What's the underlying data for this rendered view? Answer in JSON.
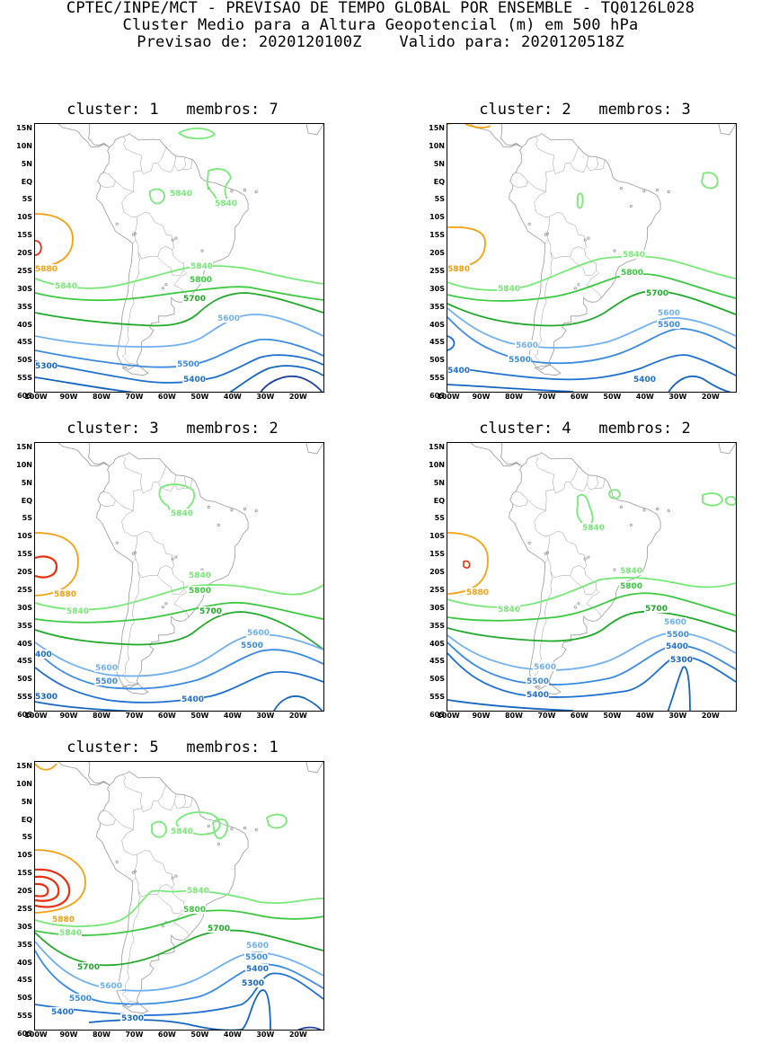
{
  "header": {
    "line1": "CPTEC/INPE/MCT - PREVISAO DE TEMPO GLOBAL POR ENSEMBLE - TQ0126L028",
    "line2": "Cluster Medio para a Altura Geopotencial (m) em 500 hPa",
    "line3": "Previsao de: 2020120100Z    Valido para: 2020120518Z"
  },
  "lat_labels": [
    "15N",
    "10N",
    "5N",
    "EQ",
    "5S",
    "10S",
    "15S",
    "20S",
    "25S",
    "30S",
    "35S",
    "40S",
    "45S",
    "50S",
    "55S",
    "60S"
  ],
  "lon_labels": [
    "100W",
    "90W",
    "80W",
    "70W",
    "60W",
    "50W",
    "40W",
    "30W",
    "20W"
  ],
  "colors": {
    "c5300": "#1565c0",
    "c5400": "#1e6fd0",
    "c5500": "#3a8ae0",
    "c5600": "#70b0f0",
    "c5700": "#22a82a",
    "c5800": "#3cc840",
    "c5840": "#78e878",
    "c5880": "#f5a010",
    "c5920": "#e83010",
    "c5220": "#2040a0",
    "coast": "#9a9a9a"
  },
  "panels": [
    {
      "title": "cluster: 1   membros: 7",
      "labels": [
        {
          "text": "5840",
          "color": "c5840"
        },
        {
          "text": "5840",
          "color": "c5840"
        },
        {
          "text": "5880",
          "color": "c5880"
        },
        {
          "text": "5840",
          "color": "c5840"
        },
        {
          "text": "5840",
          "color": "c5840"
        },
        {
          "text": "5800",
          "color": "c5800"
        },
        {
          "text": "5700",
          "color": "c5700"
        },
        {
          "text": "5600",
          "color": "c5600"
        },
        {
          "text": "5500",
          "color": "c5500"
        },
        {
          "text": "5400",
          "color": "c5400"
        },
        {
          "text": "5300",
          "color": "c5300"
        }
      ]
    },
    {
      "title": "cluster: 2   membros: 3",
      "labels": [
        {
          "text": "5880",
          "color": "c5880"
        },
        {
          "text": "5840",
          "color": "c5840"
        },
        {
          "text": "5840",
          "color": "c5840"
        },
        {
          "text": "5800",
          "color": "c5800"
        },
        {
          "text": "5700",
          "color": "c5700"
        },
        {
          "text": "5600",
          "color": "c5600"
        },
        {
          "text": "5600",
          "color": "c5600"
        },
        {
          "text": "5500",
          "color": "c5500"
        },
        {
          "text": "5500",
          "color": "c5500"
        },
        {
          "text": "5400",
          "color": "c5400"
        },
        {
          "text": "5400",
          "color": "c5400"
        }
      ]
    },
    {
      "title": "cluster: 3   membros: 2",
      "labels": [
        {
          "text": "5840",
          "color": "c5840"
        },
        {
          "text": "5880",
          "color": "c5880"
        },
        {
          "text": "5840",
          "color": "c5840"
        },
        {
          "text": "5840",
          "color": "c5840"
        },
        {
          "text": "5800",
          "color": "c5800"
        },
        {
          "text": "5700",
          "color": "c5700"
        },
        {
          "text": "5600",
          "color": "c5600"
        },
        {
          "text": "5500",
          "color": "c5500"
        },
        {
          "text": "400",
          "color": "c5400"
        },
        {
          "text": "5600",
          "color": "c5600"
        },
        {
          "text": "5500",
          "color": "c5500"
        },
        {
          "text": "5400",
          "color": "c5400"
        },
        {
          "text": "5300",
          "color": "c5300"
        }
      ]
    },
    {
      "title": "cluster: 4   membros: 2",
      "labels": [
        {
          "text": "5840",
          "color": "c5840"
        },
        {
          "text": "5880",
          "color": "c5880"
        },
        {
          "text": "5840",
          "color": "c5840"
        },
        {
          "text": "5840",
          "color": "c5840"
        },
        {
          "text": "5800",
          "color": "c5800"
        },
        {
          "text": "5700",
          "color": "c5700"
        },
        {
          "text": "5600",
          "color": "c5600"
        },
        {
          "text": "5500",
          "color": "c5500"
        },
        {
          "text": "5400",
          "color": "c5400"
        },
        {
          "text": "5300",
          "color": "c5300"
        },
        {
          "text": "5600",
          "color": "c5600"
        },
        {
          "text": "5500",
          "color": "c5500"
        },
        {
          "text": "5400",
          "color": "c5400"
        }
      ]
    },
    {
      "title": "cluster: 5   membros: 1",
      "labels": [
        {
          "text": "5840",
          "color": "c5840"
        },
        {
          "text": "5840",
          "color": "c5840"
        },
        {
          "text": "5880",
          "color": "c5880"
        },
        {
          "text": "5840",
          "color": "c5840"
        },
        {
          "text": "5800",
          "color": "c5800"
        },
        {
          "text": "5700",
          "color": "c5700"
        },
        {
          "text": "5700",
          "color": "c5700"
        },
        {
          "text": "5600",
          "color": "c5600"
        },
        {
          "text": "5500",
          "color": "c5500"
        },
        {
          "text": "5400",
          "color": "c5400"
        },
        {
          "text": "5300",
          "color": "c5300"
        },
        {
          "text": "5600",
          "color": "c5600"
        },
        {
          "text": "5500",
          "color": "c5500"
        },
        {
          "text": "5400",
          "color": "c5400"
        },
        {
          "text": "5300",
          "color": "c5300"
        }
      ]
    }
  ]
}
